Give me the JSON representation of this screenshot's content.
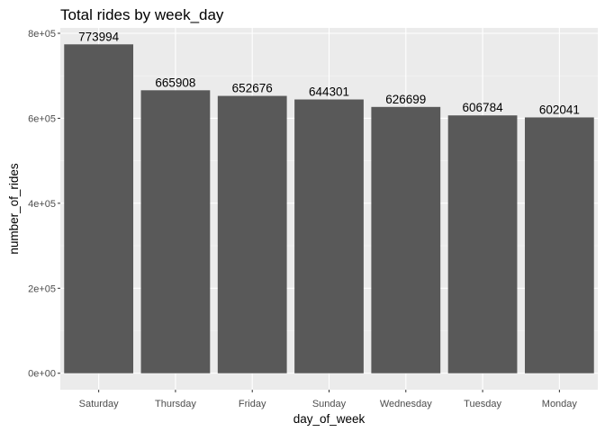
{
  "chart_data": {
    "type": "bar",
    "title": "Total rides by week_day",
    "xlabel": "day_of_week",
    "ylabel": "number_of_rides",
    "categories": [
      "Saturday",
      "Thursday",
      "Friday",
      "Sunday",
      "Wednesday",
      "Tuesday",
      "Monday"
    ],
    "values": [
      773994,
      665908,
      652676,
      644301,
      626699,
      606784,
      602041
    ],
    "data_labels": [
      "773994",
      "665908",
      "652676",
      "644301",
      "626699",
      "606784",
      "602041"
    ],
    "yticks": [
      0,
      200000,
      400000,
      600000,
      800000
    ],
    "ytick_labels": [
      "0e+00",
      "2e+05",
      "4e+05",
      "6e+05",
      "8e+05"
    ],
    "ylim": [
      -38700,
      812700
    ],
    "grid": true,
    "legend": "none",
    "colors": {
      "bar": "#595959",
      "panel_background": "#ebebeb",
      "grid_major": "#ffffff",
      "grid_minor": "#f5f5f5"
    }
  }
}
